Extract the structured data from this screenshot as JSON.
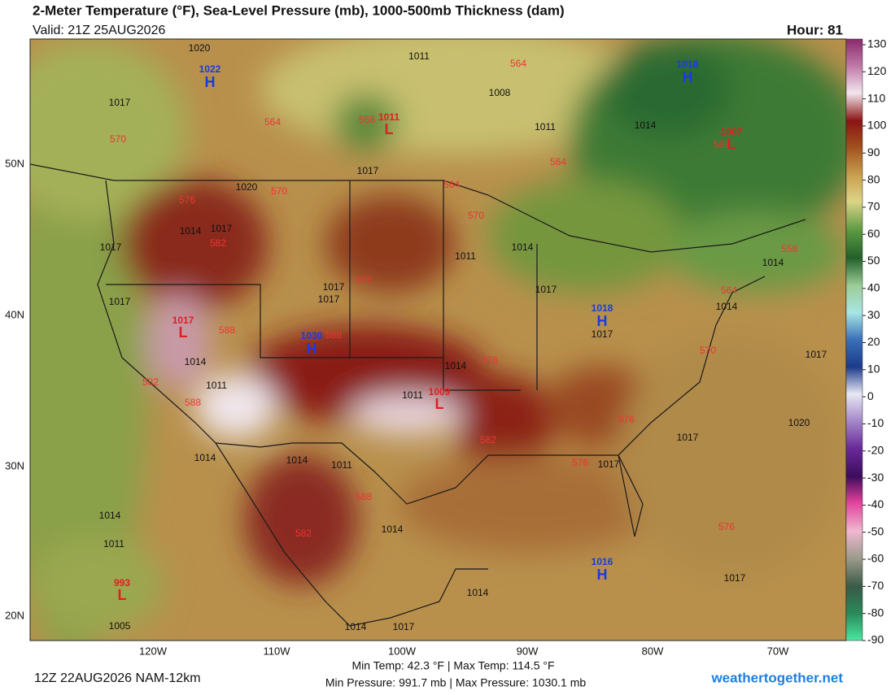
{
  "header": {
    "title": "2-Meter Temperature (°F), Sea-Level Pressure (mb), 1000-500mb Thickness (dam)",
    "valid": "Valid: 21Z 25AUG2026",
    "hour": "Hour: 81"
  },
  "map": {
    "lon_labels": [
      "120W",
      "110W",
      "100W",
      "90W",
      "80W",
      "70W"
    ],
    "lat_labels": [
      "50N",
      "40N",
      "30N",
      "20N"
    ],
    "highs": [
      {
        "letter": "H",
        "pressure": 1022
      },
      {
        "letter": "H",
        "pressure": 1018
      },
      {
        "letter": "H",
        "pressure": 1030
      },
      {
        "letter": "H",
        "pressure": 1018
      },
      {
        "letter": "H",
        "pressure": 1016
      }
    ],
    "lows": [
      {
        "letter": "L",
        "pressure": 1011
      },
      {
        "letter": "L",
        "pressure": 1007
      },
      {
        "letter": "L",
        "pressure": 1017
      },
      {
        "letter": "L",
        "pressure": 1009
      },
      {
        "letter": "L",
        "pressure": 993
      }
    ],
    "isobar_labels": [
      1020,
      1017,
      1011,
      1008,
      1011,
      1014,
      1017,
      1020,
      1017,
      1014,
      1017,
      1011,
      1014,
      1017,
      1017,
      1017,
      1017,
      1017,
      1014,
      1014,
      1011,
      1011,
      1017,
      1020,
      1017,
      1017,
      1014,
      1014,
      1011,
      1014,
      1014,
      1011,
      1005,
      1014,
      1017,
      1014,
      1017,
      1014,
      1014
    ],
    "thickness_labels": [
      564,
      564,
      558,
      570,
      564,
      564,
      570,
      576,
      570,
      582,
      576,
      588,
      588,
      576,
      582,
      588,
      582,
      576,
      576,
      588,
      582,
      576,
      570,
      564,
      558,
      558
    ]
  },
  "colorbar": {
    "ticks": [
      130,
      120,
      110,
      100,
      90,
      80,
      70,
      60,
      50,
      40,
      30,
      20,
      10,
      0,
      -10,
      -20,
      -30,
      -40,
      -50,
      -60,
      -70,
      -80,
      -90
    ]
  },
  "footer": {
    "min_max_temp": "Min Temp:  42.3 °F | Max Temp: 114.5 °F",
    "min_max_pressure": "Min Pressure: 991.7 mb | Max Pressure: 1030.1 mb",
    "run": "12Z 22AUG2026 NAM-12km",
    "site": "weathertogether.net"
  }
}
